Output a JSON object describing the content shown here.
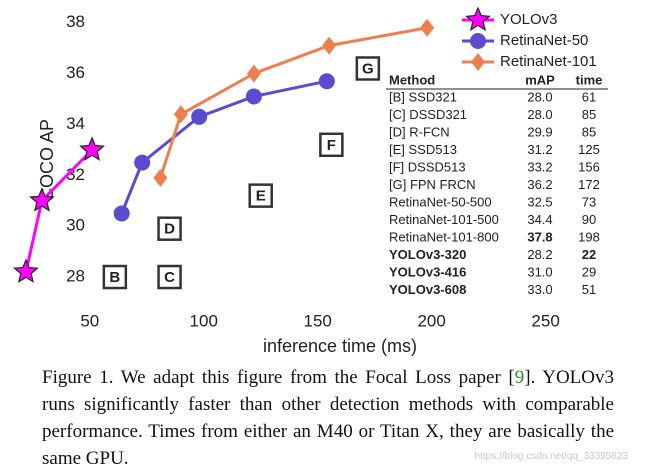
{
  "chart_data": {
    "type": "line",
    "x_label": "inference time (ms)",
    "y_label": "COCO AP",
    "xlim": [
      15,
      280
    ],
    "xticks": [
      50,
      100,
      150,
      200,
      250
    ],
    "ylim": [
      26.9,
      38.5
    ],
    "yticks": [
      28,
      30,
      32,
      34,
      36,
      38
    ],
    "series": [
      {
        "name": "YOLOv3",
        "color": "#ff00ff",
        "marker": "star",
        "x": [
          22,
          29,
          51
        ],
        "values": [
          28.2,
          31.0,
          33.0
        ]
      },
      {
        "name": "RetinaNet-50",
        "color": "#5a4bd1",
        "marker": "circle",
        "x": [
          64,
          73,
          98,
          122,
          154
        ],
        "values": [
          30.5,
          32.5,
          34.3,
          35.1,
          35.7
        ]
      },
      {
        "name": "RetinaNet-101",
        "color": "#ef7e4e",
        "marker": "diamond",
        "x": [
          81,
          90,
          122,
          155,
          198
        ],
        "values": [
          31.9,
          34.4,
          36.0,
          37.1,
          37.8
        ]
      }
    ],
    "annotations": [
      {
        "label": "B",
        "x": 61,
        "y": 28.0
      },
      {
        "label": "C",
        "x": 85,
        "y": 28.0
      },
      {
        "label": "D",
        "x": 85,
        "y": 29.9
      },
      {
        "label": "E",
        "x": 125,
        "y": 31.2
      },
      {
        "label": "F",
        "x": 156,
        "y": 33.2
      },
      {
        "label": "G",
        "x": 172,
        "y": 36.2
      }
    ],
    "table": {
      "columns": [
        "Method",
        "mAP",
        "time"
      ],
      "rows": [
        [
          "[B] SSD321",
          "28.0",
          "61"
        ],
        [
          "[C] DSSD321",
          "28.0",
          "85"
        ],
        [
          "[D] R-FCN",
          "29.9",
          "85"
        ],
        [
          "[E] SSD513",
          "31.2",
          "125"
        ],
        [
          "[F] DSSD513",
          "33.2",
          "156"
        ],
        [
          "[G] FPN FRCN",
          "36.2",
          "172"
        ],
        [
          "RetinaNet-50-500",
          "32.5",
          "73"
        ],
        [
          "RetinaNet-101-500",
          "34.4",
          "90"
        ],
        [
          "RetinaNet-101-800",
          "37.8",
          "198"
        ],
        [
          "YOLOv3-320",
          "28.2",
          "22"
        ],
        [
          "YOLOv3-416",
          "31.0",
          "29"
        ],
        [
          "YOLOv3-608",
          "33.0",
          "51"
        ]
      ],
      "bold_cells": [
        [
          8,
          1
        ],
        [
          9,
          0
        ],
        [
          9,
          2
        ],
        [
          10,
          0
        ],
        [
          11,
          0
        ]
      ]
    }
  },
  "caption": [
    "Figure 1. We adapt this figure from the Focal Loss paper [",
    "9",
    "]. YOLOv3 runs significantly faster than other detection methods with comparable performance. Times from either an M40 or Titan X, they are basically the same GPU."
  ],
  "watermark": "https://blog.csdn.net/qq_33395823"
}
